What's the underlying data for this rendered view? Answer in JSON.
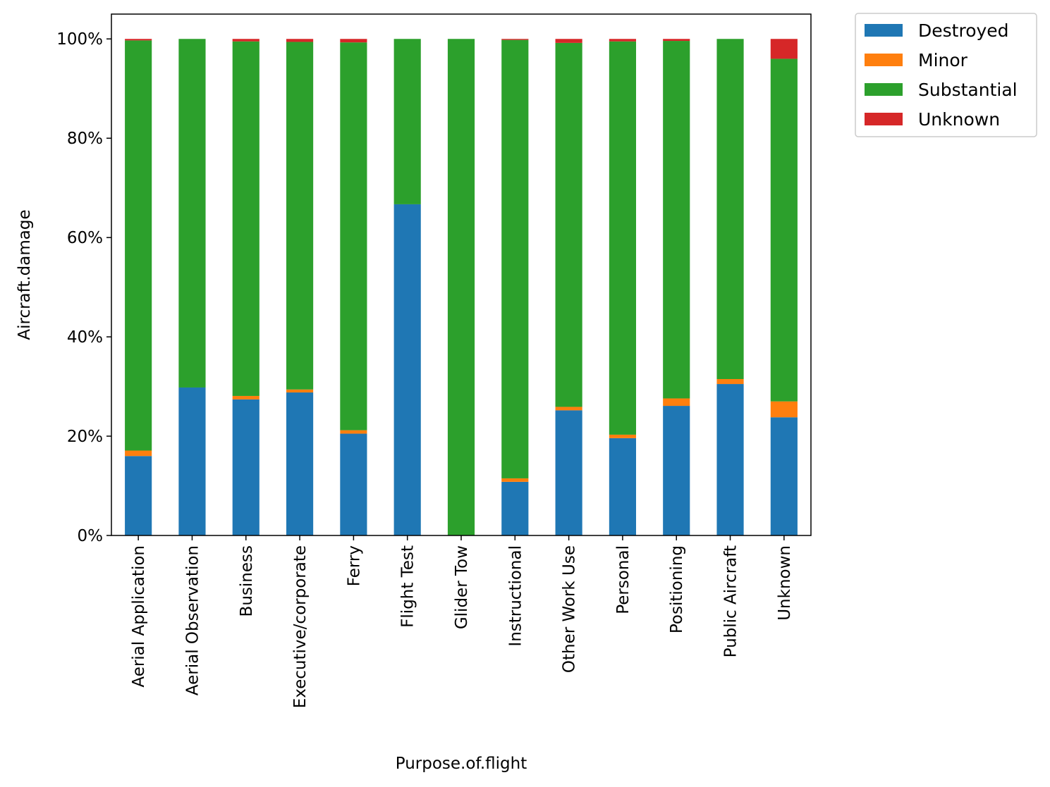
{
  "chart_data": {
    "type": "bar",
    "stacked": true,
    "normalized": true,
    "xlabel": "Purpose.of.flight",
    "ylabel": "Aircraft.damage",
    "ylim": [
      0,
      1.05
    ],
    "yticks": [
      0,
      0.2,
      0.4,
      0.6,
      0.8,
      1.0
    ],
    "ytick_labels": [
      "0%",
      "20%",
      "40%",
      "60%",
      "80%",
      "100%"
    ],
    "grid": false,
    "legend_position": "outside-top-right",
    "categories": [
      "Aerial Application",
      "Aerial Observation",
      "Business",
      "Executive/corporate",
      "Ferry",
      "Flight Test",
      "Glider Tow",
      "Instructional",
      "Other Work Use",
      "Personal",
      "Positioning",
      "Public Aircraft",
      "Unknown"
    ],
    "series": [
      {
        "name": "Destroyed",
        "color": "#1f77b4",
        "values": [
          0.16,
          0.298,
          0.274,
          0.288,
          0.205,
          0.667,
          0.0,
          0.108,
          0.252,
          0.196,
          0.261,
          0.305,
          0.238
        ]
      },
      {
        "name": "Minor",
        "color": "#ff7f0e",
        "values": [
          0.011,
          0.0,
          0.007,
          0.006,
          0.007,
          0.0,
          0.0,
          0.007,
          0.007,
          0.007,
          0.015,
          0.01,
          0.032
        ]
      },
      {
        "name": "Substantial",
        "color": "#2ca02c",
        "values": [
          0.826,
          0.702,
          0.714,
          0.7,
          0.781,
          0.333,
          1.0,
          0.883,
          0.733,
          0.792,
          0.72,
          0.685,
          0.69
        ]
      },
      {
        "name": "Unknown",
        "color": "#d62728",
        "values": [
          0.003,
          0.0,
          0.005,
          0.006,
          0.007,
          0.0,
          0.0,
          0.002,
          0.008,
          0.005,
          0.004,
          0.0,
          0.04
        ]
      }
    ]
  }
}
